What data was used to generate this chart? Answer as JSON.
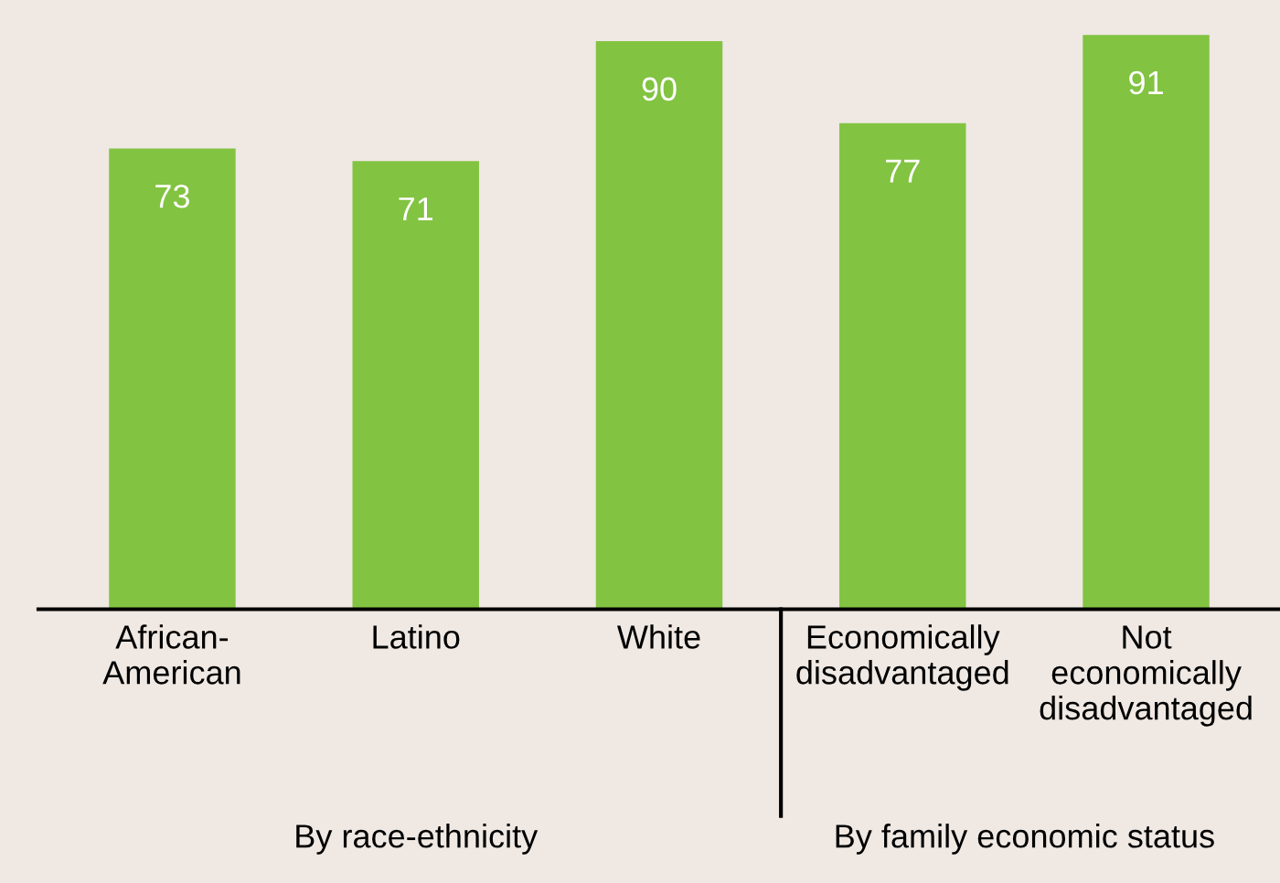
{
  "chart_data": {
    "type": "bar",
    "categories": [
      "African-\nAmerican",
      "Latino",
      "White",
      "Economically\ndisadvantaged",
      "Not\neconomically\ndisadvantaged"
    ],
    "values": [
      73,
      71,
      90,
      77,
      91
    ],
    "color": "#82c341",
    "data_labels": true,
    "grid": false,
    "annotations": [
      "By race-ethnicity",
      "By family economic status"
    ]
  }
}
